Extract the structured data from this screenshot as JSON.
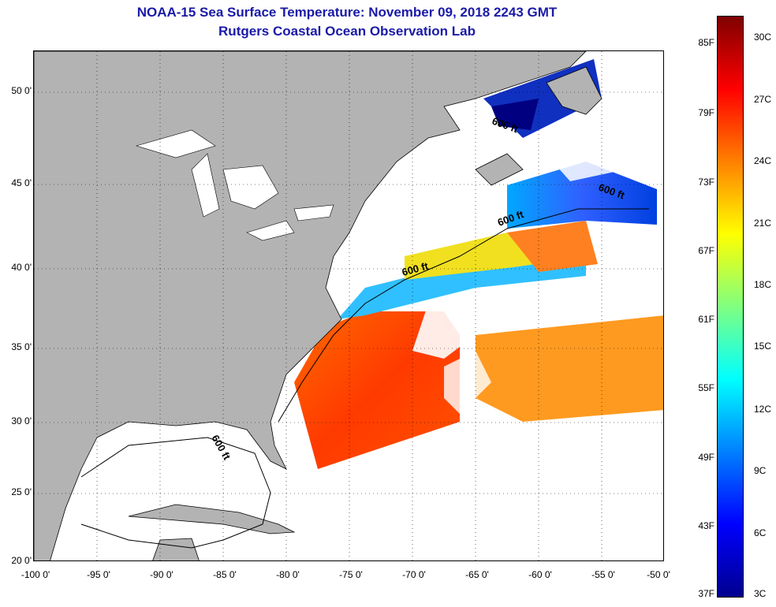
{
  "header": {
    "title_line1": "NOAA-15 Sea Surface Temperature:  November 09, 2018 2243 GMT",
    "title_line2": "Rutgers Coastal Ocean Observation Lab"
  },
  "map": {
    "lat_ticks": [
      "50 0'",
      "45 0'",
      "40 0'",
      "35 0'",
      "30 0'",
      "25 0'",
      "20 0'"
    ],
    "lon_ticks": [
      "-100 0'",
      "-95 0'",
      "-90 0'",
      "-85 0'",
      "-80 0'",
      "-75 0'",
      "-70 0'",
      "-65 0'",
      "-60 0'",
      "-55 0'",
      "-50 0'"
    ],
    "isobath_labels": [
      "600 ft",
      "600 ft",
      "600 ft",
      "600 ft",
      "600 ft"
    ],
    "colors": {
      "land": "#b3b3b3",
      "no_data": "#ffffff"
    }
  },
  "colorbar": {
    "fahrenheit_labels": [
      "85F",
      "79F",
      "73F",
      "67F",
      "61F",
      "55F",
      "49F",
      "43F",
      "37F"
    ],
    "celsius_labels": [
      "30C",
      "27C",
      "24C",
      "21C",
      "18C",
      "15C",
      "12C",
      "9C",
      "6C",
      "3C"
    ],
    "colors": [
      "#800000",
      "#ff0000",
      "#ff8000",
      "#ffff00",
      "#80ff80",
      "#00ffff",
      "#0080ff",
      "#0000ff",
      "#00008f"
    ]
  }
}
